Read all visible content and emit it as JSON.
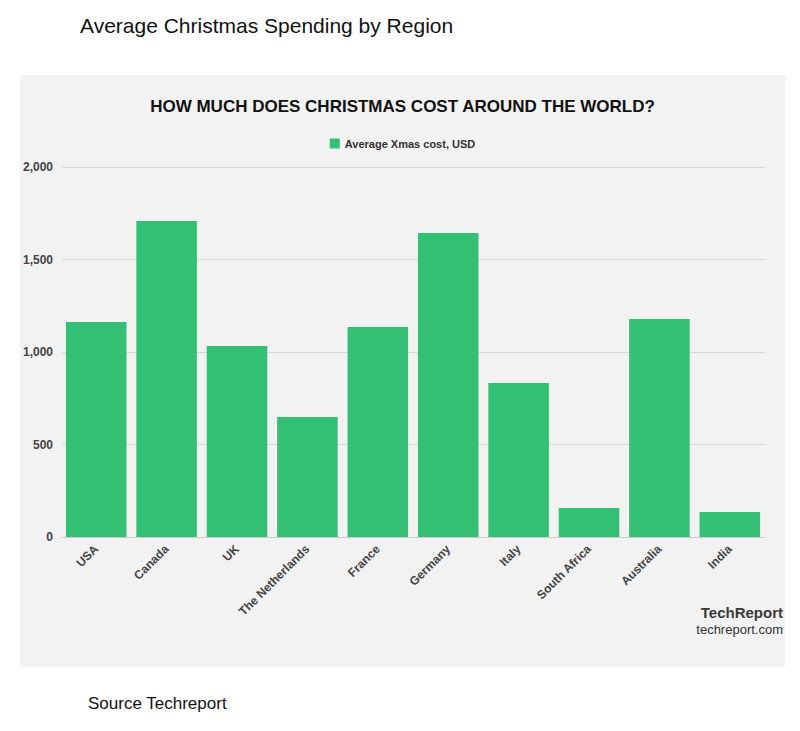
{
  "header": "Average Christmas Spending by Region",
  "footer": "Source Techreport",
  "chart_data": {
    "type": "bar",
    "title": "HOW MUCH DOES CHRISTMAS COST AROUND THE WORLD?",
    "categories": [
      "USA",
      "Canada",
      "UK",
      "The Netherlands",
      "France",
      "Germany",
      "Italy",
      "South Africa",
      "Australia",
      "India"
    ],
    "series": [
      {
        "name": "Average Xmas cost, USD",
        "color": "#33c074",
        "values": [
          1162,
          1708,
          1032,
          649,
          1135,
          1643,
          832,
          157,
          1178,
          135
        ]
      }
    ],
    "ylim": [
      0,
      2000
    ],
    "yticks": [
      0,
      500,
      {
        "value": 1000,
        "label": "1,000"
      },
      {
        "value": 1500,
        "label": "1,500"
      },
      {
        "value": 2000,
        "label": "2,000"
      }
    ],
    "grid": true,
    "legend": "top",
    "annotations": [
      "TechReport",
      "techreport.com"
    ]
  }
}
